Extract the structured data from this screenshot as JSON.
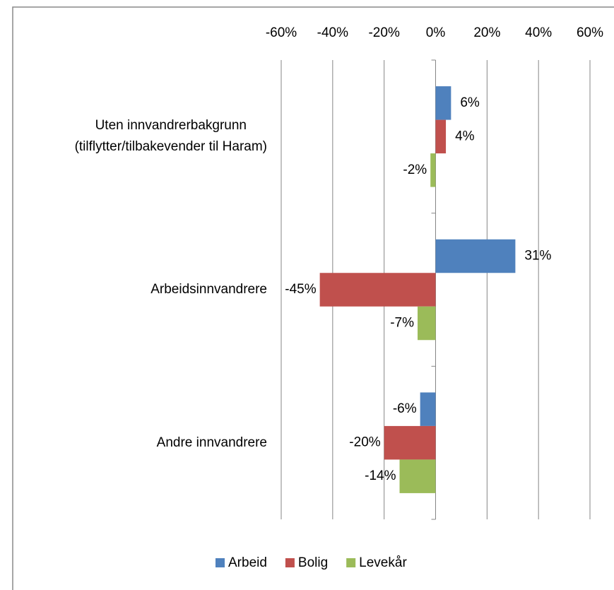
{
  "chart_data": {
    "type": "hbar",
    "categories": [
      "Uten innvandrerbakgrunn\n(tilflytter/tilbakevender til Haram)",
      "Arbeidsinnvandrere",
      "Andre innvandrere"
    ],
    "series": [
      {
        "name": "Arbeid",
        "color": "#4f81bd",
        "values": [
          6,
          31,
          -6
        ],
        "value_labels": [
          "6%",
          "31%",
          "-6%"
        ]
      },
      {
        "name": "Bolig",
        "color": "#c0504d",
        "values": [
          4,
          -45,
          -20
        ],
        "value_labels": [
          "4%",
          "-45%",
          "-20%"
        ]
      },
      {
        "name": "Levekår",
        "color": "#9bbb59",
        "values": [
          -2,
          -7,
          -14
        ],
        "value_labels": [
          "-2%",
          "-7%",
          "-14%"
        ]
      }
    ],
    "xlim": [
      -60,
      60
    ],
    "xticks": [
      {
        "value": -60,
        "label": "-60%"
      },
      {
        "value": -40,
        "label": "-40%"
      },
      {
        "value": -20,
        "label": "-20%"
      },
      {
        "value": 0,
        "label": "0%"
      },
      {
        "value": 20,
        "label": "20%"
      },
      {
        "value": 40,
        "label": "40%"
      },
      {
        "value": 60,
        "label": "60%"
      }
    ],
    "grid": true,
    "legend": "bottom"
  }
}
